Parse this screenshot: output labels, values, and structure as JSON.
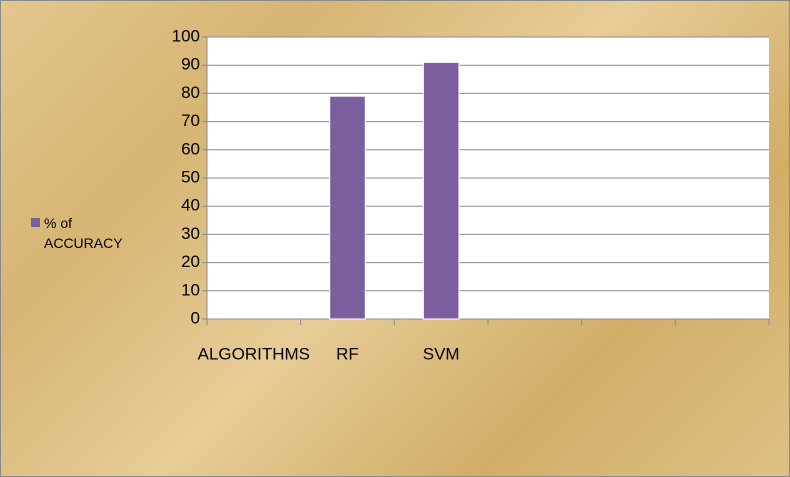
{
  "chart_data": {
    "type": "bar",
    "categories": [
      "ALGORITHMS",
      "RF",
      "SVM",
      null,
      null,
      null
    ],
    "series": [
      {
        "name": "% of ACCURACY",
        "color": "#7b5e9e",
        "values": [
          null,
          79,
          91,
          null,
          null,
          null
        ]
      }
    ],
    "ylim": [
      0,
      100
    ],
    "yticks": [
      0,
      10,
      20,
      30,
      40,
      50,
      60,
      70,
      80,
      90,
      100
    ],
    "grid": true,
    "legend": "left"
  }
}
